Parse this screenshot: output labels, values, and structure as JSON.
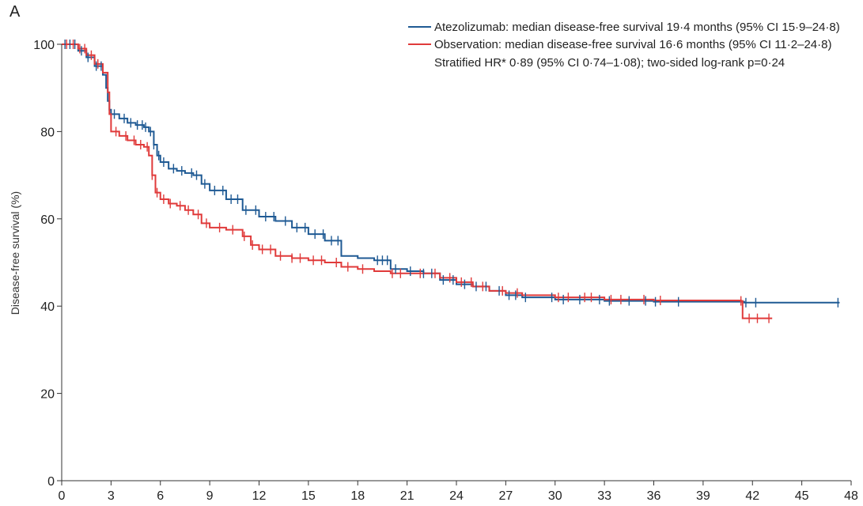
{
  "panel_label": "A",
  "colors": {
    "series_0": "#1f5a94",
    "series_1": "#e03a3a",
    "axis": "#333333"
  },
  "chart_data": {
    "type": "line",
    "title": "",
    "xlabel": "",
    "ylabel": "Disease-free survival (%)",
    "xlim": [
      0,
      48
    ],
    "ylim": [
      0,
      100
    ],
    "xticks": [
      0,
      3,
      6,
      9,
      12,
      15,
      18,
      21,
      24,
      27,
      30,
      33,
      36,
      39,
      42,
      45,
      48
    ],
    "yticks": [
      0,
      20,
      40,
      60,
      80,
      100
    ],
    "grid": false,
    "legend_position": "top-right",
    "legend": [
      "Atezolizumab: median disease-free survival 19·4 months (95% CI 15·9–24·8)",
      "Observation: median disease-free survival 16·6 months (95% CI 11·2–24·8)"
    ],
    "annotation": "Stratified HR* 0·89 (95% CI 0·74–1·08); two-sided log-rank p=0·24",
    "series": [
      {
        "name": "Atezolizumab",
        "x": [
          0,
          1.0,
          1.5,
          2.0,
          2.5,
          2.7,
          2.8,
          2.9,
          3.0,
          3.5,
          4.0,
          4.5,
          5.0,
          5.3,
          5.6,
          5.8,
          6.0,
          6.5,
          7.0,
          7.5,
          8.0,
          8.5,
          9.0,
          10.0,
          11.0,
          12.0,
          13.0,
          14.0,
          15.0,
          16.0,
          17.0,
          18.0,
          19.0,
          20.0,
          21.0,
          22.0,
          23.0,
          24.0,
          25.0,
          26.0,
          27.0,
          28.0,
          30.0,
          33.0,
          36.0,
          40.0,
          41.5,
          44.0,
          47.3
        ],
        "y": [
          100,
          98.5,
          97,
          95,
          93,
          90,
          87,
          85,
          84,
          83,
          82,
          81.5,
          81,
          80,
          77,
          74.5,
          73,
          71.5,
          71,
          70.5,
          70,
          68,
          66.5,
          64.5,
          62,
          60.5,
          59.5,
          58,
          56.5,
          55,
          51.5,
          51,
          50.5,
          48.5,
          48,
          47.5,
          46,
          45,
          44.5,
          43.5,
          42.5,
          42,
          41.5,
          41.2,
          41,
          41,
          40.8,
          40.8,
          40.8
        ]
      },
      {
        "name": "Observation",
        "x": [
          0,
          1.0,
          1.5,
          2.0,
          2.5,
          2.8,
          2.9,
          3.0,
          3.5,
          4.0,
          4.5,
          5.0,
          5.3,
          5.5,
          5.7,
          6.0,
          6.5,
          7.0,
          7.5,
          8.0,
          8.5,
          9.0,
          10.0,
          11.0,
          11.5,
          12.0,
          13.0,
          14.0,
          15.0,
          16.0,
          17.0,
          18.0,
          19.0,
          20.0,
          21.0,
          22.0,
          23.0,
          24.0,
          25.0,
          26.0,
          27.0,
          28.0,
          30.0,
          33.0,
          36.0,
          41.3,
          41.4,
          43.2
        ],
        "y": [
          100,
          99,
          97.5,
          95.5,
          93.5,
          89,
          84,
          80,
          79,
          78,
          77,
          76.5,
          74.5,
          70,
          66,
          64.5,
          63.5,
          63,
          62,
          61,
          59,
          58,
          57.5,
          56,
          54,
          53,
          51.5,
          51,
          50.5,
          50,
          49,
          48.5,
          48,
          47.5,
          47.5,
          47.5,
          46.5,
          45.5,
          44.5,
          43.5,
          43,
          42.5,
          42,
          41.5,
          41.3,
          41.2,
          37.2,
          37.2
        ]
      }
    ],
    "censor_marks": [
      {
        "series": "Atezolizumab",
        "x": [
          0.2,
          0.5,
          0.8,
          1.2,
          1.6,
          2.1,
          2.4,
          3.2,
          3.8,
          4.2,
          4.6,
          4.9,
          5.1,
          5.4,
          5.6,
          5.9,
          6.2,
          6.8,
          7.3,
          7.9,
          8.2,
          8.7,
          9.3,
          9.8,
          10.3,
          10.7,
          11.2,
          11.8,
          12.4,
          12.9,
          13.6,
          14.3,
          14.8,
          15.4,
          15.9,
          16.4,
          16.8,
          19.2,
          19.5,
          19.8,
          20.3,
          21.2,
          22.0,
          22.5,
          23.2,
          23.8,
          24.5,
          25.2,
          25.8,
          26.6,
          27.2,
          27.6,
          28.2,
          29.8,
          30.5,
          31.5,
          32.7,
          33.3,
          34.5,
          35.5,
          36.1,
          37.5,
          41.6,
          42.2,
          47.2
        ]
      },
      {
        "series": "Observation",
        "x": [
          0.3,
          0.7,
          1.1,
          1.4,
          1.8,
          2.2,
          3.3,
          3.9,
          4.4,
          4.8,
          5.2,
          5.5,
          5.8,
          6.2,
          6.6,
          7.2,
          7.7,
          8.3,
          8.8,
          9.6,
          10.4,
          11.1,
          11.6,
          12.2,
          12.7,
          13.3,
          14.0,
          14.5,
          15.3,
          15.8,
          16.7,
          17.4,
          18.3,
          20.1,
          20.6,
          21.8,
          22.7,
          23.6,
          24.3,
          24.9,
          25.6,
          26.8,
          27.7,
          30.2,
          30.8,
          31.8,
          32.2,
          33.4,
          34.0,
          35.4,
          36.4,
          41.3,
          41.8,
          42.3,
          43.0
        ]
      }
    ]
  }
}
